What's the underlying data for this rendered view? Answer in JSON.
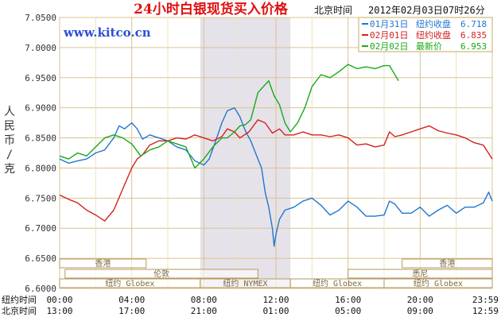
{
  "chart_data": {
    "type": "line",
    "title": "24小时白银现货买入价格",
    "timezone_label": "北京时间",
    "timestamp": "2012年02月03日07时26分",
    "watermark": "www.kitco.cn",
    "ylabel": "人民币/克",
    "ylim": [
      6.6,
      7.05
    ],
    "yticks": [
      "7.0500",
      "7.0000",
      "6.9500",
      "6.9000",
      "6.8500",
      "6.8000",
      "6.7500",
      "6.7000",
      "6.6500",
      "6.6000"
    ],
    "ytick_values": [
      7.05,
      7.0,
      6.95,
      6.9,
      6.85,
      6.8,
      6.75,
      6.7,
      6.65,
      6.6
    ],
    "xlim": [
      0,
      24
    ],
    "xtick_positions": [
      0,
      4,
      8,
      12,
      16,
      20,
      24
    ],
    "xaxis_rows": [
      {
        "label": "纽约时间",
        "ticks": [
          "00:00",
          "04:00",
          "08:00",
          "12:00",
          "16:00",
          "20:00",
          "23:59"
        ]
      },
      {
        "label": "北京时间",
        "ticks": [
          "13:00",
          "17:00",
          "21:00",
          "01:00",
          "05:00",
          "09:00",
          "12:59"
        ]
      }
    ],
    "shaded_region": [
      7.8,
      12.8
    ],
    "market_sessions": [
      {
        "label": "香港",
        "start": 0,
        "end": 4.8,
        "row": 0
      },
      {
        "label": "香港",
        "start": 19,
        "end": 24,
        "row": 0
      },
      {
        "label": "伦敦",
        "start": 0.3,
        "end": 11,
        "row": 1
      },
      {
        "label": "悉尼",
        "start": 16,
        "end": 24,
        "row": 1
      },
      {
        "label": "纽约 Globex",
        "start": 0,
        "end": 7.8,
        "row": 2
      },
      {
        "label": "纽约 NYMEX",
        "start": 7.8,
        "end": 12.8,
        "row": 2
      },
      {
        "label": "纽约 Globex",
        "start": 12.8,
        "end": 18,
        "row": 2
      },
      {
        "label": "纽约 Globex",
        "start": 18,
        "end": 24,
        "row": 2
      }
    ],
    "series": [
      {
        "name": "01月31日",
        "legend_text": "纽约收盘",
        "legend_value": "6.718",
        "color": "#1f77d0",
        "points": [
          [
            0,
            6.815
          ],
          [
            0.5,
            6.808
          ],
          [
            1,
            6.812
          ],
          [
            1.5,
            6.815
          ],
          [
            2,
            6.825
          ],
          [
            2.5,
            6.83
          ],
          [
            3,
            6.85
          ],
          [
            3.3,
            6.87
          ],
          [
            3.6,
            6.865
          ],
          [
            4,
            6.875
          ],
          [
            4.3,
            6.865
          ],
          [
            4.6,
            6.848
          ],
          [
            5,
            6.855
          ],
          [
            5.5,
            6.85
          ],
          [
            6,
            6.845
          ],
          [
            6.5,
            6.835
          ],
          [
            7,
            6.83
          ],
          [
            7.5,
            6.812
          ],
          [
            8,
            6.805
          ],
          [
            8.3,
            6.815
          ],
          [
            8.6,
            6.84
          ],
          [
            9,
            6.875
          ],
          [
            9.3,
            6.895
          ],
          [
            9.7,
            6.9
          ],
          [
            10,
            6.885
          ],
          [
            10.3,
            6.862
          ],
          [
            10.6,
            6.845
          ],
          [
            11,
            6.815
          ],
          [
            11.2,
            6.8
          ],
          [
            11.4,
            6.76
          ],
          [
            11.6,
            6.735
          ],
          [
            11.8,
            6.7
          ],
          [
            11.9,
            6.67
          ],
          [
            12.0,
            6.69
          ],
          [
            12.2,
            6.715
          ],
          [
            12.5,
            6.73
          ],
          [
            13,
            6.735
          ],
          [
            13.5,
            6.745
          ],
          [
            14,
            6.75
          ],
          [
            14.5,
            6.738
          ],
          [
            15,
            6.722
          ],
          [
            15.5,
            6.73
          ],
          [
            16,
            6.745
          ],
          [
            16.5,
            6.735
          ],
          [
            17,
            6.72
          ],
          [
            17.5,
            6.72
          ],
          [
            18,
            6.722
          ],
          [
            18.3,
            6.745
          ],
          [
            18.6,
            6.74
          ],
          [
            19,
            6.725
          ],
          [
            19.5,
            6.725
          ],
          [
            20,
            6.735
          ],
          [
            20.5,
            6.72
          ],
          [
            21,
            6.73
          ],
          [
            21.5,
            6.738
          ],
          [
            22,
            6.725
          ],
          [
            22.5,
            6.735
          ],
          [
            23,
            6.735
          ],
          [
            23.5,
            6.742
          ],
          [
            23.8,
            6.76
          ],
          [
            24,
            6.745
          ]
        ]
      },
      {
        "name": "02月01日",
        "legend_text": "纽约收盘",
        "legend_value": "6.835",
        "color": "#d42020",
        "points": [
          [
            0,
            6.755
          ],
          [
            0.5,
            6.748
          ],
          [
            1,
            6.742
          ],
          [
            1.5,
            6.73
          ],
          [
            2,
            6.722
          ],
          [
            2.5,
            6.712
          ],
          [
            3,
            6.73
          ],
          [
            3.5,
            6.765
          ],
          [
            4,
            6.8
          ],
          [
            4.3,
            6.815
          ],
          [
            4.6,
            6.822
          ],
          [
            5,
            6.838
          ],
          [
            5.5,
            6.845
          ],
          [
            6,
            6.845
          ],
          [
            6.5,
            6.85
          ],
          [
            7,
            6.848
          ],
          [
            7.5,
            6.855
          ],
          [
            8,
            6.85
          ],
          [
            8.5,
            6.845
          ],
          [
            9,
            6.852
          ],
          [
            9.3,
            6.865
          ],
          [
            9.7,
            6.86
          ],
          [
            10,
            6.85
          ],
          [
            10.5,
            6.86
          ],
          [
            11,
            6.88
          ],
          [
            11.4,
            6.875
          ],
          [
            11.8,
            6.858
          ],
          [
            12.2,
            6.865
          ],
          [
            12.5,
            6.855
          ],
          [
            13,
            6.855
          ],
          [
            13.5,
            6.86
          ],
          [
            14,
            6.855
          ],
          [
            14.5,
            6.855
          ],
          [
            15,
            6.852
          ],
          [
            15.5,
            6.855
          ],
          [
            16,
            6.85
          ],
          [
            16.5,
            6.838
          ],
          [
            17,
            6.84
          ],
          [
            17.5,
            6.835
          ],
          [
            18,
            6.838
          ],
          [
            18.3,
            6.86
          ],
          [
            18.6,
            6.852
          ],
          [
            19,
            6.855
          ],
          [
            19.5,
            6.86
          ],
          [
            20,
            6.865
          ],
          [
            20.5,
            6.87
          ],
          [
            21,
            6.862
          ],
          [
            21.5,
            6.858
          ],
          [
            22,
            6.855
          ],
          [
            22.5,
            6.85
          ],
          [
            23,
            6.842
          ],
          [
            23.5,
            6.838
          ],
          [
            24,
            6.815
          ]
        ]
      },
      {
        "name": "02月02日",
        "legend_text": "最新价",
        "legend_value": "6.953",
        "color": "#1aa81a",
        "points": [
          [
            0,
            6.82
          ],
          [
            0.5,
            6.815
          ],
          [
            1,
            6.825
          ],
          [
            1.5,
            6.82
          ],
          [
            2,
            6.835
          ],
          [
            2.5,
            6.85
          ],
          [
            3,
            6.855
          ],
          [
            3.5,
            6.85
          ],
          [
            4,
            6.84
          ],
          [
            4.5,
            6.82
          ],
          [
            5,
            6.83
          ],
          [
            5.5,
            6.835
          ],
          [
            6,
            6.845
          ],
          [
            6.5,
            6.84
          ],
          [
            7,
            6.835
          ],
          [
            7.5,
            6.8
          ],
          [
            8,
            6.815
          ],
          [
            8.5,
            6.835
          ],
          [
            9,
            6.85
          ],
          [
            9.3,
            6.85
          ],
          [
            9.7,
            6.86
          ],
          [
            10,
            6.87
          ],
          [
            10.3,
            6.872
          ],
          [
            10.6,
            6.88
          ],
          [
            11,
            6.925
          ],
          [
            11.3,
            6.935
          ],
          [
            11.6,
            6.945
          ],
          [
            11.9,
            6.92
          ],
          [
            12.2,
            6.905
          ],
          [
            12.5,
            6.875
          ],
          [
            12.8,
            6.86
          ],
          [
            13.2,
            6.875
          ],
          [
            13.6,
            6.9
          ],
          [
            14,
            6.935
          ],
          [
            14.5,
            6.955
          ],
          [
            15,
            6.95
          ],
          [
            15.5,
            6.96
          ],
          [
            16,
            6.972
          ],
          [
            16.5,
            6.965
          ],
          [
            17,
            6.968
          ],
          [
            17.5,
            6.965
          ],
          [
            18,
            6.97
          ],
          [
            18.3,
            6.97
          ],
          [
            18.5,
            6.96
          ],
          [
            18.8,
            6.945
          ]
        ]
      }
    ]
  }
}
